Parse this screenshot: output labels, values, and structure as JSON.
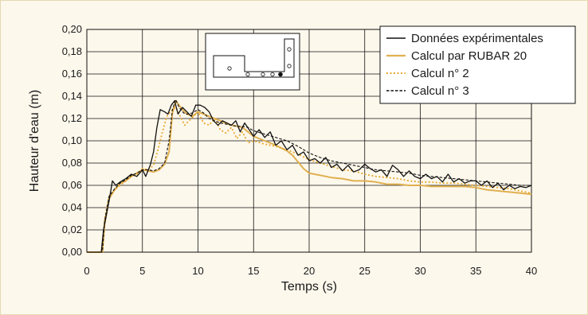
{
  "chart_data": {
    "type": "line",
    "xlabel": "Temps (s)",
    "ylabel": "Hauteur d'eau (m)",
    "xlim": [
      0,
      40
    ],
    "ylim": [
      0,
      0.2
    ],
    "x_ticks": [
      0,
      5,
      10,
      15,
      20,
      25,
      30,
      35,
      40
    ],
    "y_ticks": [
      0,
      0.02,
      0.04,
      0.06,
      0.08,
      0.1,
      0.12,
      0.14,
      0.16,
      0.18,
      0.2
    ],
    "x_tick_labels": [
      "0",
      "5",
      "10",
      "15",
      "20",
      "25",
      "30",
      "35",
      "40"
    ],
    "y_tick_labels": [
      "0,00",
      "0,02",
      "0,04",
      "0,06",
      "0,08",
      "0,10",
      "0,12",
      "0,14",
      "0,16",
      "0,18",
      "0,20"
    ],
    "grid": true,
    "legend_position": "top-right",
    "series": [
      {
        "name": "Données expérimentales",
        "color": "#111111",
        "style": "solid",
        "x": [
          0,
          1.3,
          1.5,
          2.0,
          2.3,
          2.6,
          3.0,
          3.5,
          4.0,
          4.5,
          5.0,
          5.3,
          5.7,
          6.0,
          6.3,
          6.6,
          7.0,
          7.3,
          7.6,
          7.9,
          8.2,
          8.6,
          9.0,
          9.4,
          9.8,
          10.2,
          10.6,
          11.0,
          11.4,
          11.8,
          12.2,
          12.6,
          13.0,
          13.4,
          13.8,
          14.2,
          14.6,
          15.0,
          15.5,
          16.0,
          16.5,
          17.0,
          17.5,
          18.0,
          18.5,
          19.0,
          19.5,
          20.0,
          20.5,
          21.0,
          21.5,
          22.0,
          22.5,
          23.0,
          23.5,
          24.0,
          24.5,
          25.0,
          25.5,
          26.0,
          26.5,
          27.0,
          27.5,
          28.0,
          28.5,
          29.0,
          29.5,
          30.0,
          30.5,
          31.0,
          31.5,
          32.0,
          32.5,
          33.0,
          33.5,
          34.0,
          34.5,
          35.0,
          35.5,
          36.0,
          36.5,
          37.0,
          37.5,
          38.0,
          38.5,
          39.0,
          39.5,
          40.0
        ],
        "y": [
          0.0,
          0.0,
          0.02,
          0.046,
          0.064,
          0.06,
          0.063,
          0.066,
          0.07,
          0.068,
          0.074,
          0.068,
          0.078,
          0.09,
          0.112,
          0.128,
          0.126,
          0.124,
          0.132,
          0.136,
          0.124,
          0.13,
          0.126,
          0.122,
          0.132,
          0.132,
          0.13,
          0.126,
          0.118,
          0.114,
          0.118,
          0.116,
          0.114,
          0.118,
          0.108,
          0.116,
          0.11,
          0.104,
          0.11,
          0.103,
          0.108,
          0.096,
          0.1,
          0.092,
          0.096,
          0.087,
          0.09,
          0.082,
          0.084,
          0.08,
          0.085,
          0.076,
          0.079,
          0.073,
          0.078,
          0.072,
          0.074,
          0.079,
          0.075,
          0.072,
          0.074,
          0.068,
          0.078,
          0.074,
          0.068,
          0.073,
          0.068,
          0.066,
          0.07,
          0.066,
          0.068,
          0.063,
          0.07,
          0.063,
          0.066,
          0.062,
          0.064,
          0.064,
          0.06,
          0.064,
          0.058,
          0.062,
          0.056,
          0.06,
          0.057,
          0.059,
          0.058,
          0.06
        ]
      },
      {
        "name": "Calcul par RUBAR 20",
        "color": "#e0b050",
        "style": "solid",
        "x": [
          0,
          1.4,
          1.6,
          2.0,
          2.5,
          3.0,
          3.5,
          4.0,
          4.5,
          5.0,
          5.5,
          6.0,
          6.5,
          7.0,
          7.4,
          7.7,
          8.0,
          8.3,
          8.6,
          9.0,
          9.5,
          10.0,
          10.5,
          11.0,
          11.5,
          12.0,
          12.5,
          13.0,
          13.5,
          14.0,
          14.5,
          15.0,
          16.0,
          17.0,
          18.0,
          18.5,
          19.0,
          19.5,
          20.0,
          21.0,
          22.0,
          23.0,
          24.0,
          25.0,
          26.0,
          27.0,
          28.0,
          29.0,
          30.0,
          31.0,
          32.0,
          33.0,
          34.0,
          35.0,
          36.0,
          37.0,
          38.0,
          39.0,
          40.0
        ],
        "y": [
          0.0,
          0.0,
          0.025,
          0.048,
          0.056,
          0.062,
          0.064,
          0.068,
          0.071,
          0.074,
          0.073,
          0.072,
          0.074,
          0.079,
          0.09,
          0.125,
          0.136,
          0.132,
          0.128,
          0.124,
          0.122,
          0.126,
          0.124,
          0.122,
          0.12,
          0.118,
          0.116,
          0.114,
          0.113,
          0.112,
          0.108,
          0.104,
          0.1,
          0.096,
          0.091,
          0.087,
          0.081,
          0.075,
          0.071,
          0.069,
          0.067,
          0.066,
          0.064,
          0.064,
          0.063,
          0.061,
          0.061,
          0.06,
          0.06,
          0.059,
          0.059,
          0.059,
          0.059,
          0.058,
          0.056,
          0.055,
          0.054,
          0.053,
          0.052
        ]
      },
      {
        "name": "Calcul n° 2",
        "color": "#e8a830",
        "style": "dotted",
        "x": [
          0,
          1.4,
          1.6,
          2.0,
          2.5,
          3.0,
          3.5,
          4.0,
          4.5,
          5.0,
          5.5,
          6.0,
          6.4,
          6.8,
          7.2,
          7.6,
          8.0,
          8.4,
          8.8,
          9.2,
          9.6,
          10.0,
          10.5,
          11.0,
          11.5,
          12.0,
          12.5,
          13.0,
          13.5,
          14.0,
          14.5,
          15.0,
          16.0,
          17.0,
          18.0,
          19.0,
          20.0,
          21.0,
          22.0,
          23.0,
          24.0,
          25.0,
          26.0,
          27.0,
          28.0,
          29.0,
          30.0,
          31.0,
          32.0,
          33.0,
          34.0,
          35.0,
          36.0,
          37.0,
          38.0,
          39.0,
          40.0
        ],
        "y": [
          0.0,
          0.0,
          0.03,
          0.05,
          0.056,
          0.06,
          0.064,
          0.068,
          0.07,
          0.075,
          0.074,
          0.078,
          0.092,
          0.108,
          0.122,
          0.127,
          0.13,
          0.122,
          0.114,
          0.118,
          0.122,
          0.126,
          0.116,
          0.114,
          0.12,
          0.11,
          0.107,
          0.112,
          0.102,
          0.108,
          0.098,
          0.1,
          0.097,
          0.095,
          0.092,
          0.088,
          0.083,
          0.08,
          0.077,
          0.074,
          0.073,
          0.07,
          0.068,
          0.067,
          0.066,
          0.064,
          0.063,
          0.063,
          0.062,
          0.062,
          0.061,
          0.06,
          0.059,
          0.058,
          0.057,
          0.055,
          0.053
        ]
      },
      {
        "name": "Calcul n° 3",
        "color": "#111111",
        "style": "dashed",
        "x": [
          0,
          1.4,
          1.6,
          2.0,
          2.5,
          3.0,
          3.5,
          4.0,
          4.5,
          5.0,
          5.5,
          6.0,
          6.5,
          7.0,
          7.4,
          7.7,
          8.0,
          8.3,
          8.7,
          9.0,
          9.5,
          10.0,
          10.5,
          11.0,
          11.5,
          12.0,
          12.5,
          13.0,
          13.5,
          14.0,
          14.5,
          15.0,
          16.0,
          17.0,
          18.0,
          19.0,
          20.0,
          21.0,
          22.0,
          23.0,
          24.0,
          25.0,
          26.0,
          27.0,
          28.0,
          29.0,
          30.0,
          31.0,
          32.0,
          33.0,
          34.0,
          35.0,
          36.0,
          37.0,
          38.0,
          39.0,
          40.0
        ],
        "y": [
          0.0,
          0.0,
          0.028,
          0.05,
          0.057,
          0.062,
          0.065,
          0.069,
          0.071,
          0.074,
          0.074,
          0.073,
          0.075,
          0.08,
          0.1,
          0.128,
          0.137,
          0.13,
          0.125,
          0.124,
          0.125,
          0.128,
          0.125,
          0.12,
          0.118,
          0.116,
          0.115,
          0.114,
          0.113,
          0.113,
          0.112,
          0.109,
          0.106,
          0.103,
          0.1,
          0.095,
          0.089,
          0.085,
          0.082,
          0.08,
          0.078,
          0.076,
          0.074,
          0.073,
          0.072,
          0.071,
          0.069,
          0.068,
          0.067,
          0.066,
          0.065,
          0.064,
          0.063,
          0.062,
          0.061,
          0.06,
          0.06
        ]
      }
    ]
  }
}
